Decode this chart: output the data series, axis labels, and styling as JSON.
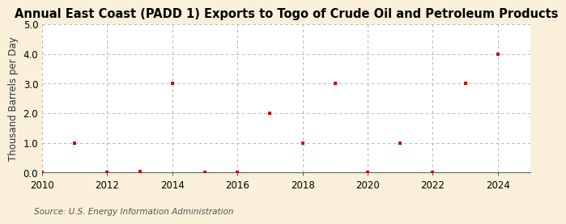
{
  "title": "Annual East Coast (PADD 1) Exports to Togo of Crude Oil and Petroleum Products",
  "ylabel": "Thousand Barrels per Day",
  "source": "Source: U.S. Energy Information Administration",
  "figure_bg_color": "#faefd8",
  "plot_bg_color": "#ffffff",
  "scatter_color": "#cc0000",
  "x_data": [
    2010,
    2011,
    2012,
    2013,
    2014,
    2015,
    2016,
    2017,
    2018,
    2019,
    2020,
    2021,
    2022,
    2023,
    2024
  ],
  "y_data": [
    0.0,
    1.0,
    0.0,
    0.04,
    3.0,
    0.0,
    0.0,
    2.0,
    1.0,
    3.0,
    0.0,
    1.0,
    0.0,
    3.0,
    4.0
  ],
  "xlim": [
    2010,
    2025
  ],
  "ylim": [
    0.0,
    5.0
  ],
  "yticks": [
    0.0,
    1.0,
    2.0,
    3.0,
    4.0,
    5.0
  ],
  "xticks": [
    2010,
    2012,
    2014,
    2016,
    2018,
    2020,
    2022,
    2024
  ],
  "grid_color": "#aaaaaa",
  "title_fontsize": 10.5,
  "axis_fontsize": 8.5,
  "source_fontsize": 7.5
}
